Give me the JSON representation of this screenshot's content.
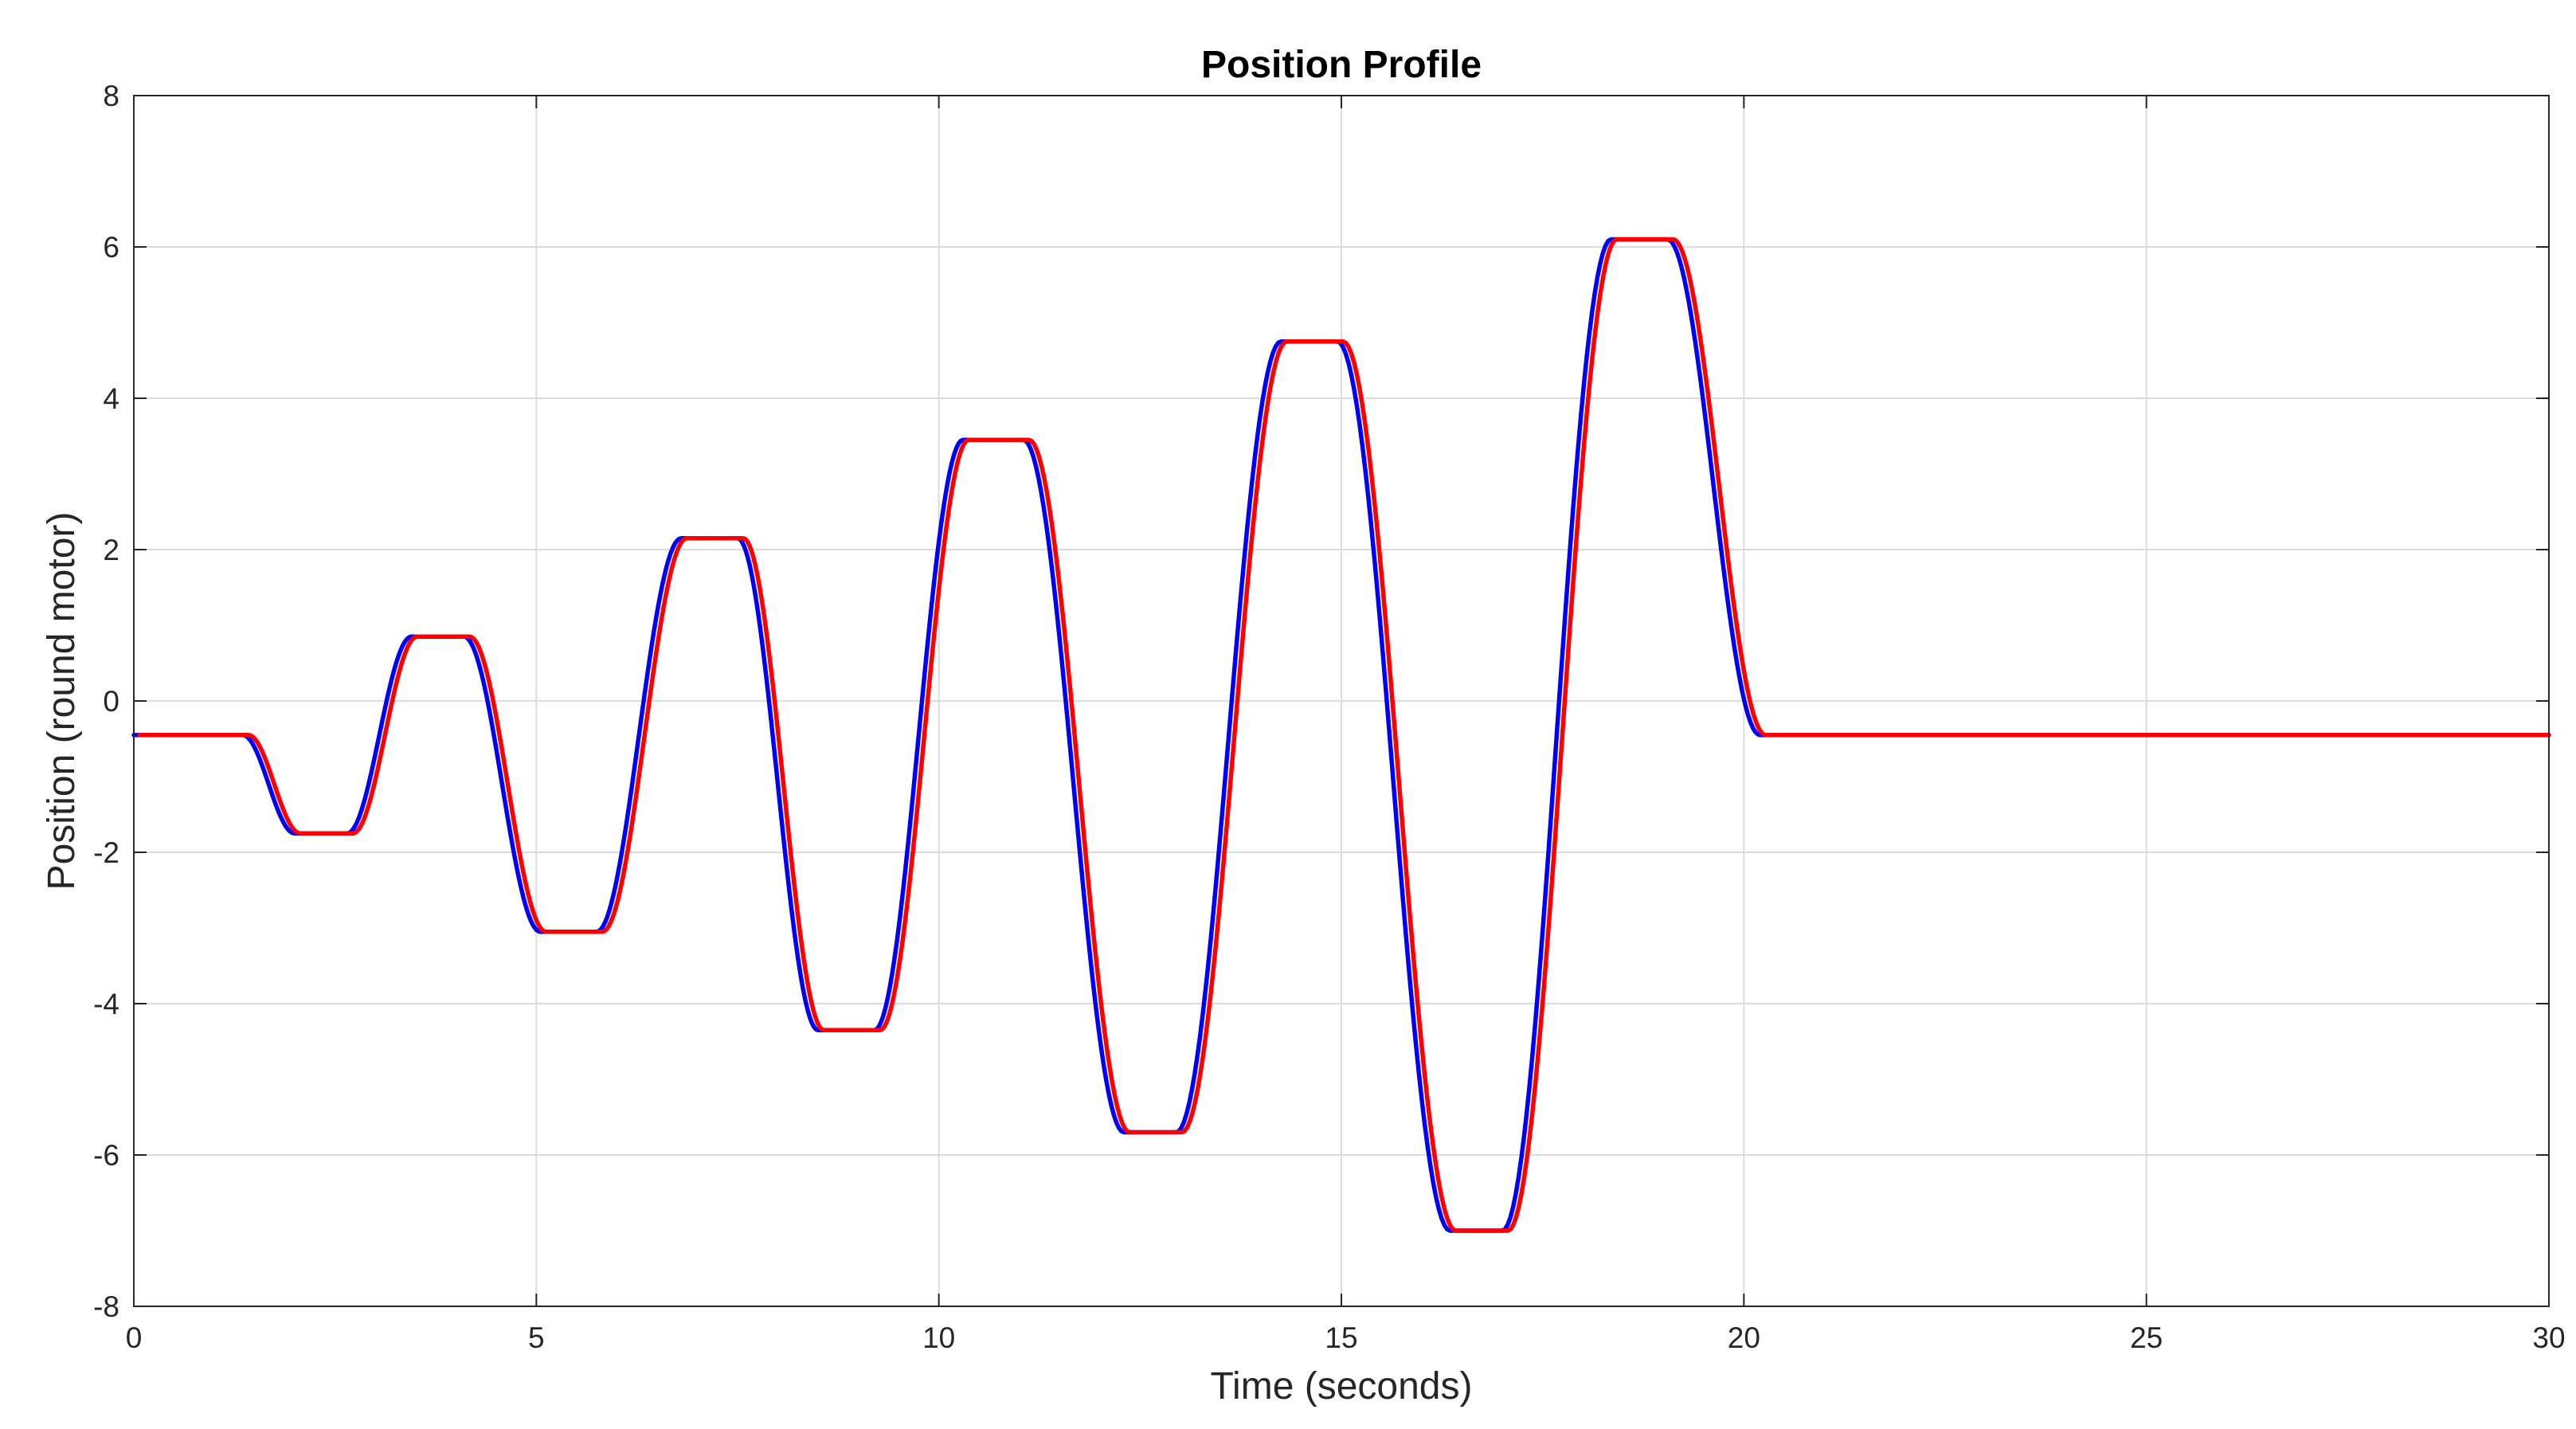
{
  "chart_data": {
    "type": "line",
    "title": "Position Profile",
    "xlabel": "Time (seconds)",
    "ylabel": "Position (round motor)",
    "xlim": [
      0,
      30
    ],
    "ylim": [
      -8,
      8
    ],
    "xticks": [
      0,
      5,
      10,
      15,
      20,
      25,
      30
    ],
    "yticks": [
      -8,
      -6,
      -4,
      -2,
      0,
      2,
      4,
      6,
      8
    ],
    "grid": true,
    "box": true,
    "legend": "none",
    "colors": {
      "grid": "#dcdcdc",
      "axis": "#262626"
    },
    "series": [
      {
        "color": "#0000ff",
        "time_offset": 0,
        "points": [
          [
            0,
            -0.45
          ],
          [
            1.35,
            -0.45
          ],
          [
            2.0,
            -1.75
          ],
          [
            2.65,
            -1.75
          ],
          [
            3.45,
            0.85
          ],
          [
            4.1,
            0.85
          ],
          [
            5.05,
            -3.05
          ],
          [
            5.75,
            -3.05
          ],
          [
            6.8,
            2.15
          ],
          [
            7.5,
            2.15
          ],
          [
            8.5,
            -4.35
          ],
          [
            9.2,
            -4.35
          ],
          [
            10.3,
            3.45
          ],
          [
            11.05,
            3.45
          ],
          [
            12.3,
            -5.7
          ],
          [
            12.95,
            -5.7
          ],
          [
            14.25,
            4.75
          ],
          [
            14.95,
            4.75
          ],
          [
            16.35,
            -7.0
          ],
          [
            17.0,
            -7.0
          ],
          [
            18.35,
            6.1
          ],
          [
            19.05,
            6.1
          ],
          [
            20.2,
            -0.45
          ],
          [
            30,
            -0.45
          ]
        ]
      },
      {
        "color": "#ff0000",
        "time_offset": 0.07,
        "points": [
          [
            0,
            -0.45
          ],
          [
            1.35,
            -0.45
          ],
          [
            2.0,
            -1.75
          ],
          [
            2.65,
            -1.75
          ],
          [
            3.45,
            0.85
          ],
          [
            4.1,
            0.85
          ],
          [
            5.05,
            -3.05
          ],
          [
            5.75,
            -3.05
          ],
          [
            6.8,
            2.15
          ],
          [
            7.5,
            2.15
          ],
          [
            8.5,
            -4.35
          ],
          [
            9.2,
            -4.35
          ],
          [
            10.3,
            3.45
          ],
          [
            11.05,
            3.45
          ],
          [
            12.3,
            -5.7
          ],
          [
            12.95,
            -5.7
          ],
          [
            14.25,
            4.75
          ],
          [
            14.95,
            4.75
          ],
          [
            16.35,
            -7.0
          ],
          [
            17.0,
            -7.0
          ],
          [
            18.35,
            6.1
          ],
          [
            19.05,
            6.1
          ],
          [
            20.2,
            -0.45
          ],
          [
            30,
            -0.45
          ]
        ]
      }
    ]
  }
}
